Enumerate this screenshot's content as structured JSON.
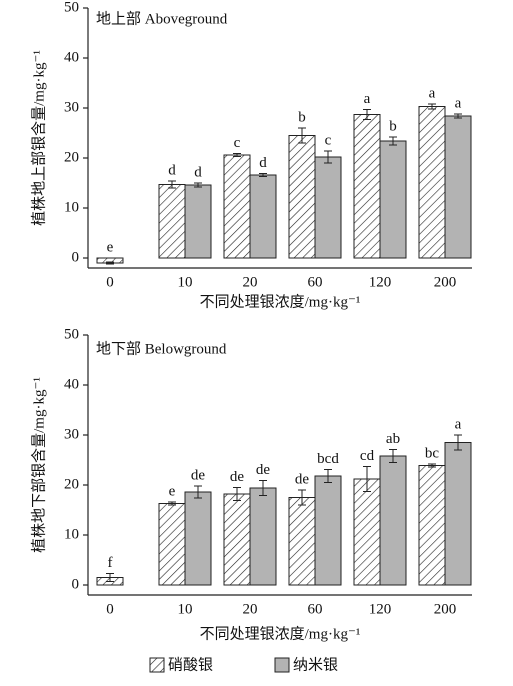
{
  "chart_data": [
    {
      "type": "bar",
      "title": "地上部 Aboveground",
      "y_label": "植株地上部银含量/mg·kg⁻¹",
      "x_label": "不同处理银浓度/mg·kg⁻¹",
      "categories": [
        "0",
        "10",
        "20",
        "60",
        "120",
        "200"
      ],
      "series": [
        {
          "name": "硝酸银",
          "color": "#ffffff",
          "hatch": true,
          "values": [
            -1,
            14.7,
            20.6,
            24.5,
            28.7,
            30.3
          ],
          "errors": [
            0.2,
            0.7,
            0.3,
            1.5,
            1.0,
            0.5
          ],
          "letters": [
            "e",
            "d",
            "c",
            "b",
            "a",
            "a"
          ]
        },
        {
          "name": "纳米银",
          "color": "#b3b3b3",
          "hatch": false,
          "values": [
            null,
            14.6,
            16.6,
            20.2,
            23.4,
            28.4
          ],
          "errors": [
            null,
            0.4,
            0.3,
            1.2,
            0.8,
            0.4
          ],
          "letters": [
            null,
            "d",
            "d",
            "c",
            "b",
            "a"
          ]
        }
      ],
      "ylim": [
        -2,
        50
      ],
      "yticks": [
        0,
        10,
        20,
        30,
        40,
        50
      ]
    },
    {
      "type": "bar",
      "title": "地下部 Belowground",
      "y_label": "植株地下部银含量/mg·kg⁻¹",
      "x_label": "不同处理银浓度/mg·kg⁻¹",
      "categories": [
        "0",
        "10",
        "20",
        "60",
        "120",
        "200"
      ],
      "series": [
        {
          "color": "#ffffff",
          "hatch": true,
          "values": [
            1.5,
            16.3,
            18.2,
            17.5,
            21.2,
            23.9
          ],
          "errors": [
            0.8,
            0.3,
            1.3,
            1.5,
            2.5,
            0.3
          ],
          "letters": [
            "f",
            "e",
            "de",
            "de",
            "cd",
            "bc"
          ]
        },
        {
          "color": "#b3b3b3",
          "hatch": false,
          "values": [
            null,
            18.6,
            19.4,
            21.8,
            25.8,
            28.5
          ],
          "errors": [
            null,
            1.2,
            1.5,
            1.3,
            1.3,
            1.5
          ],
          "letters": [
            null,
            "de",
            "de",
            "bcd",
            "ab",
            "a"
          ]
        }
      ],
      "ylim": [
        -2,
        50
      ],
      "yticks": [
        0,
        10,
        20,
        30,
        40,
        50
      ]
    }
  ]
}
